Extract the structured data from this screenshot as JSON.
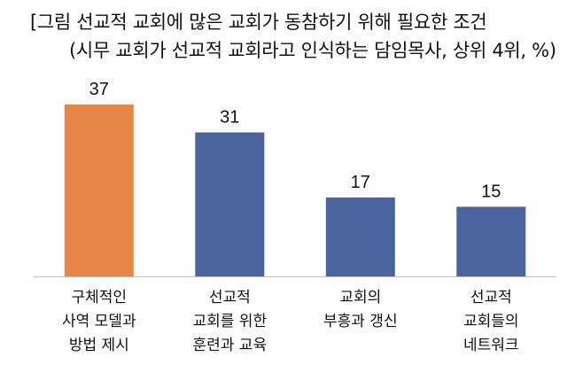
{
  "chart_data": {
    "type": "bar",
    "title": "[그림 선교적 교회에 많은 교회가 동참하기 위해 필요한 조건",
    "subtitle": "(시무 교회가 선교적 교회라고 인식하는 담임목사, 상위 4위, %)",
    "categories": [
      [
        "구체적인",
        "사역 모델과",
        "방법 제시"
      ],
      [
        "선교적",
        "교회를 위한",
        "훈련과 교육"
      ],
      [
        "교회의",
        "부흥과 갱신"
      ],
      [
        "선교적",
        "교회들의",
        "네트워크"
      ]
    ],
    "values": [
      37,
      31,
      17,
      15
    ],
    "value_labels": [
      "37",
      "31",
      "17",
      "15"
    ],
    "bar_colors": [
      "#E8864A",
      "#4A64A0",
      "#4A64A0",
      "#4A64A0"
    ],
    "axis_color": "#BFBFBF",
    "ylim": [
      0,
      37
    ],
    "xlabel": "",
    "ylabel": "",
    "grid": false,
    "legend": "none"
  }
}
